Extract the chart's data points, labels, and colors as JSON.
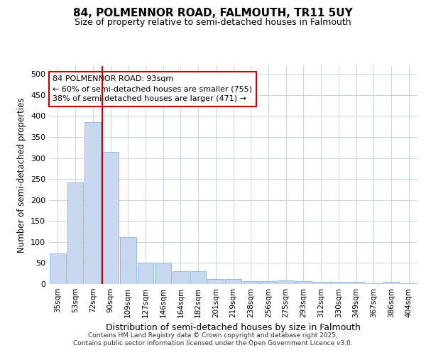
{
  "title1": "84, POLMENNOR ROAD, FALMOUTH, TR11 5UY",
  "title2": "Size of property relative to semi-detached houses in Falmouth",
  "xlabel": "Distribution of semi-detached houses by size in Falmouth",
  "ylabel": "Number of semi-detached properties",
  "categories": [
    "35sqm",
    "53sqm",
    "72sqm",
    "90sqm",
    "109sqm",
    "127sqm",
    "146sqm",
    "164sqm",
    "182sqm",
    "201sqm",
    "219sqm",
    "238sqm",
    "256sqm",
    "275sqm",
    "293sqm",
    "312sqm",
    "330sqm",
    "349sqm",
    "367sqm",
    "386sqm",
    "404sqm"
  ],
  "values": [
    72,
    242,
    385,
    315,
    112,
    50,
    50,
    30,
    30,
    12,
    12,
    7,
    7,
    8,
    7,
    5,
    5,
    5,
    2,
    5,
    2
  ],
  "bar_color": "#c8d8f0",
  "bar_edge_color": "#8ab4d8",
  "vline_x_index": 3,
  "vline_color": "#cc0000",
  "annotation_title": "84 POLMENNOR ROAD: 93sqm",
  "annotation_line1": "← 60% of semi-detached houses are smaller (755)",
  "annotation_line2": "38% of semi-detached houses are larger (471) →",
  "annotation_box_color": "#ffffff",
  "annotation_box_edgecolor": "#cc0000",
  "ylim": [
    0,
    520
  ],
  "yticks": [
    0,
    50,
    100,
    150,
    200,
    250,
    300,
    350,
    400,
    450,
    500
  ],
  "footer": "Contains HM Land Registry data © Crown copyright and database right 2025.\nContains public sector information licensed under the Open Government Licence v3.0.",
  "background_color": "#ffffff",
  "grid_color": "#c8d4e8"
}
